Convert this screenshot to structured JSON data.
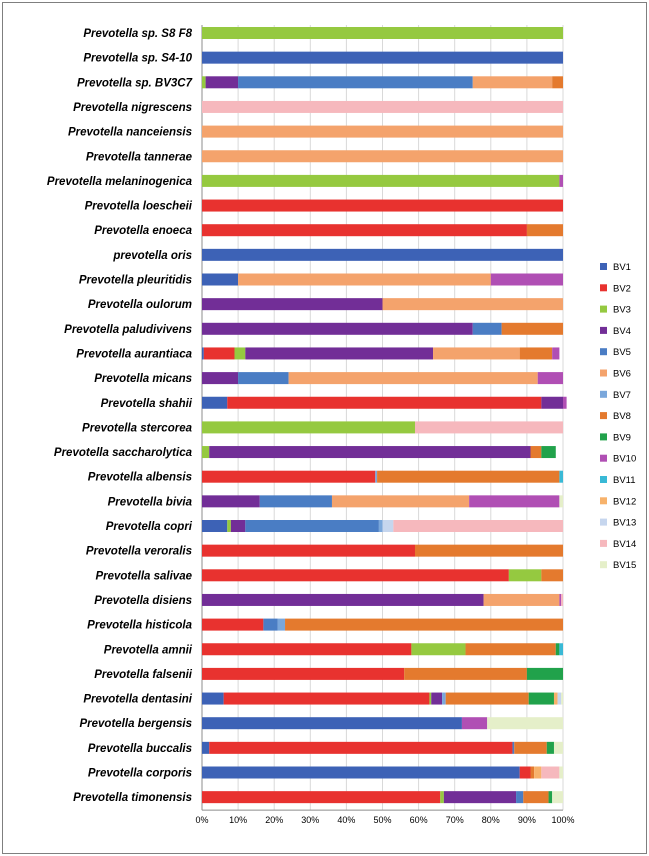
{
  "chart_data": {
    "type": "bar",
    "orientation": "horizontal",
    "stacked": "percent",
    "grid": true,
    "legend_position": "right",
    "xlim": [
      0,
      100
    ],
    "x_ticks": [
      "0%",
      "10%",
      "20%",
      "30%",
      "40%",
      "50%",
      "60%",
      "70%",
      "80%",
      "90%",
      "100%"
    ],
    "categories": [
      "Prevotella sp. S8 F8",
      "Prevotella sp. S4-10",
      "Prevotella sp. BV3C7",
      "Prevotella nigrescens",
      "Prevotella nanceiensis",
      "Prevotella tannerae",
      "Prevotella melaninogenica",
      "Prevotella loescheii",
      "Prevotella enoeca",
      "prevotella oris",
      "Prevotella pleuritidis",
      "Prevotella oulorum",
      "Prevotella paludivivens",
      "Prevotella aurantiaca",
      "Prevotella micans",
      "Prevotella shahii",
      "Prevotella stercorea",
      "Prevotella saccharolytica",
      "Prevotella albensis",
      "Prevotella bivia",
      "Prevotella copri",
      "Prevotella veroralis",
      "Prevotella salivae",
      "Prevotella disiens",
      "Prevotella histicola",
      "Prevotella amnii",
      "Prevotella falsenii",
      "Prevotella dentasini",
      "Prevotella bergensis",
      "Prevotella buccalis",
      "Prevotella corporis",
      "Prevotella timonensis"
    ],
    "series": [
      {
        "name": "BV1",
        "color": "#3d62b6",
        "values": [
          0,
          100,
          0,
          0,
          0,
          0,
          0,
          0,
          0,
          100,
          10,
          0,
          0,
          0.5,
          0,
          7,
          0,
          0,
          0,
          0,
          7,
          0,
          0,
          0,
          0,
          0,
          0,
          6,
          72,
          2,
          88,
          0
        ]
      },
      {
        "name": "BV2",
        "color": "#e8322f",
        "values": [
          0,
          0,
          0,
          0,
          0,
          0,
          0,
          100,
          90,
          0,
          0,
          0,
          0,
          8.5,
          0,
          87,
          0,
          0,
          48,
          0,
          0,
          59,
          85,
          0,
          17,
          58,
          56,
          57,
          0,
          84,
          3,
          66
        ]
      },
      {
        "name": "BV3",
        "color": "#95c940",
        "values": [
          100,
          0,
          1,
          0,
          0,
          0,
          99,
          0,
          0,
          0,
          0,
          0,
          0,
          3,
          0,
          0,
          59,
          2,
          0,
          0,
          1,
          0,
          9,
          0,
          0,
          15,
          0,
          0.5,
          0,
          0,
          0,
          1
        ]
      },
      {
        "name": "BV4",
        "color": "#722e97",
        "values": [
          0,
          0,
          9,
          0,
          0,
          0,
          0,
          0,
          0,
          0,
          0,
          50,
          75,
          52,
          10,
          6,
          0,
          89,
          0,
          16,
          4,
          0,
          0,
          78,
          0,
          0,
          0,
          3,
          0,
          0,
          0,
          20
        ]
      },
      {
        "name": "BV5",
        "color": "#4a7dc4",
        "values": [
          0,
          0,
          65,
          0,
          0,
          0,
          0,
          0,
          0,
          0,
          0,
          0,
          8,
          0,
          14,
          0,
          0,
          0,
          0,
          20,
          37,
          0,
          0,
          0,
          4,
          0,
          0,
          0,
          0,
          0.5,
          0,
          2
        ]
      },
      {
        "name": "BV6",
        "color": "#f4a36c",
        "values": [
          0,
          0,
          22,
          0,
          100,
          100,
          0,
          0,
          0,
          0,
          70,
          50,
          0,
          24,
          69,
          0,
          0,
          0,
          0,
          38,
          0,
          0,
          0,
          21,
          0,
          0,
          0,
          0,
          0,
          0,
          0,
          0
        ]
      },
      {
        "name": "BV7",
        "color": "#7aa7db",
        "values": [
          0,
          0,
          0,
          0,
          0,
          0,
          0,
          0,
          0,
          0,
          0,
          0,
          0,
          0,
          0,
          0,
          0,
          0,
          0.5,
          0,
          1,
          0,
          0,
          0,
          2,
          0,
          0,
          1,
          0,
          0,
          0,
          0
        ]
      },
      {
        "name": "BV8",
        "color": "#e47a2e",
        "values": [
          0,
          0,
          3,
          0,
          0,
          0,
          0,
          0,
          10,
          0,
          0,
          0,
          17,
          9,
          0,
          0,
          0,
          3,
          50.5,
          0,
          0,
          41,
          6,
          0,
          77,
          25,
          34,
          23,
          0,
          9,
          1,
          7
        ]
      },
      {
        "name": "BV9",
        "color": "#21a24b",
        "values": [
          0,
          0,
          0,
          0,
          0,
          0,
          0,
          0,
          0,
          0,
          0,
          0,
          0,
          0,
          0,
          0,
          0,
          4,
          0,
          0,
          0,
          0,
          0,
          0,
          0,
          1,
          10,
          7,
          0,
          2,
          0,
          1
        ]
      },
      {
        "name": "BV10",
        "color": "#b04fb4",
        "values": [
          0,
          0,
          0,
          0,
          0,
          0,
          1,
          0,
          0,
          0,
          20,
          0,
          0,
          2,
          7,
          1,
          0,
          0,
          0,
          25,
          0,
          0,
          0,
          0.5,
          0,
          0,
          0,
          0,
          7,
          0,
          0,
          0
        ]
      },
      {
        "name": "BV11",
        "color": "#39b9d6",
        "values": [
          0,
          0,
          0,
          0,
          0,
          0,
          0,
          0,
          0,
          0,
          0,
          0,
          0,
          0,
          0,
          0,
          0,
          0,
          1,
          0,
          0,
          0,
          0,
          0,
          0,
          1,
          0,
          0,
          0,
          0,
          0,
          0
        ]
      },
      {
        "name": "BV12",
        "color": "#f7b26b",
        "values": [
          0,
          0,
          0,
          0,
          0,
          0,
          0,
          0,
          0,
          0,
          0,
          0,
          0,
          0,
          0,
          0,
          0,
          0,
          0,
          0,
          0,
          0,
          0,
          0,
          0,
          0,
          0,
          1,
          0,
          0,
          2,
          0
        ]
      },
      {
        "name": "BV13",
        "color": "#c6d6ee",
        "values": [
          0,
          0,
          0,
          0,
          0,
          0,
          0,
          0,
          0,
          0,
          0,
          0,
          0,
          0,
          0,
          0,
          0,
          0,
          0,
          0,
          3,
          0,
          0,
          0,
          0,
          0,
          0,
          1,
          0,
          0,
          0,
          0
        ]
      },
      {
        "name": "BV14",
        "color": "#f6b8bd",
        "values": [
          0,
          0,
          0,
          100,
          0,
          0,
          0,
          0,
          0,
          0,
          0,
          0,
          0,
          0,
          0,
          0,
          41,
          0,
          0,
          0,
          47,
          0,
          0,
          0.5,
          0,
          0,
          0,
          0,
          0,
          0,
          5,
          0
        ]
      },
      {
        "name": "BV15",
        "color": "#e5efc9",
        "values": [
          0,
          0,
          0,
          0,
          0,
          0,
          0,
          0,
          0,
          0,
          0,
          0,
          0,
          0,
          0,
          0,
          0,
          0,
          0,
          1,
          0,
          0,
          0,
          0,
          0,
          0,
          0,
          0.5,
          21,
          2.5,
          1,
          3
        ]
      }
    ]
  }
}
